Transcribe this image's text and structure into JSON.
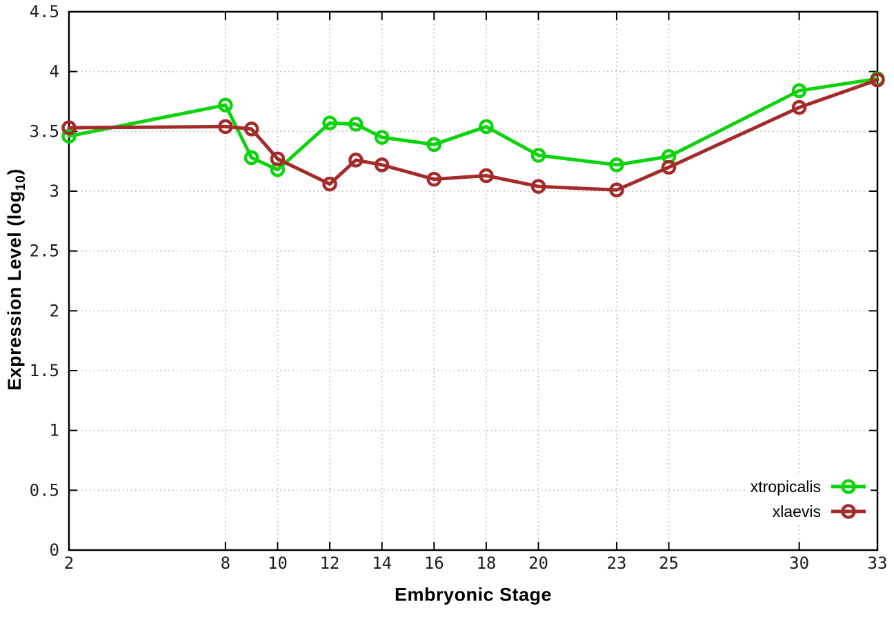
{
  "chart_data": {
    "type": "line",
    "title": "",
    "xlabel": "Embryonic Stage",
    "ylabel": {
      "prefix": "Expression Level (log",
      "sub": "10",
      "suffix": ")"
    },
    "x": [
      2,
      8,
      9,
      10,
      12,
      13,
      14,
      16,
      18,
      20,
      23,
      25,
      30,
      33
    ],
    "series": [
      {
        "name": "xtropicalis",
        "color": "#0dd30d",
        "marker": "open-circle",
        "values": [
          3.46,
          3.72,
          3.28,
          3.18,
          3.57,
          3.56,
          3.45,
          3.39,
          3.54,
          3.3,
          3.22,
          3.29,
          3.84,
          3.94
        ]
      },
      {
        "name": "xlaevis",
        "color": "#a52a2a",
        "marker": "open-circle",
        "values": [
          3.53,
          3.54,
          3.52,
          3.27,
          3.06,
          3.26,
          3.22,
          3.1,
          3.13,
          3.04,
          3.01,
          3.2,
          3.7,
          3.93
        ]
      }
    ],
    "xticks": [
      2,
      8,
      10,
      12,
      14,
      16,
      18,
      20,
      23,
      25,
      30,
      33
    ],
    "yticks": [
      0,
      0.5,
      1,
      1.5,
      2,
      2.5,
      3,
      3.5,
      4,
      4.5
    ],
    "xlim": [
      2,
      33
    ],
    "ylim": [
      0,
      4.5
    ],
    "grid": true,
    "grid_style": "dotted",
    "legend_position": "bottom-right",
    "colors": {
      "axis": "#000000",
      "grid": "#b5b5b5",
      "tick_label": "#1c1c1c"
    }
  }
}
